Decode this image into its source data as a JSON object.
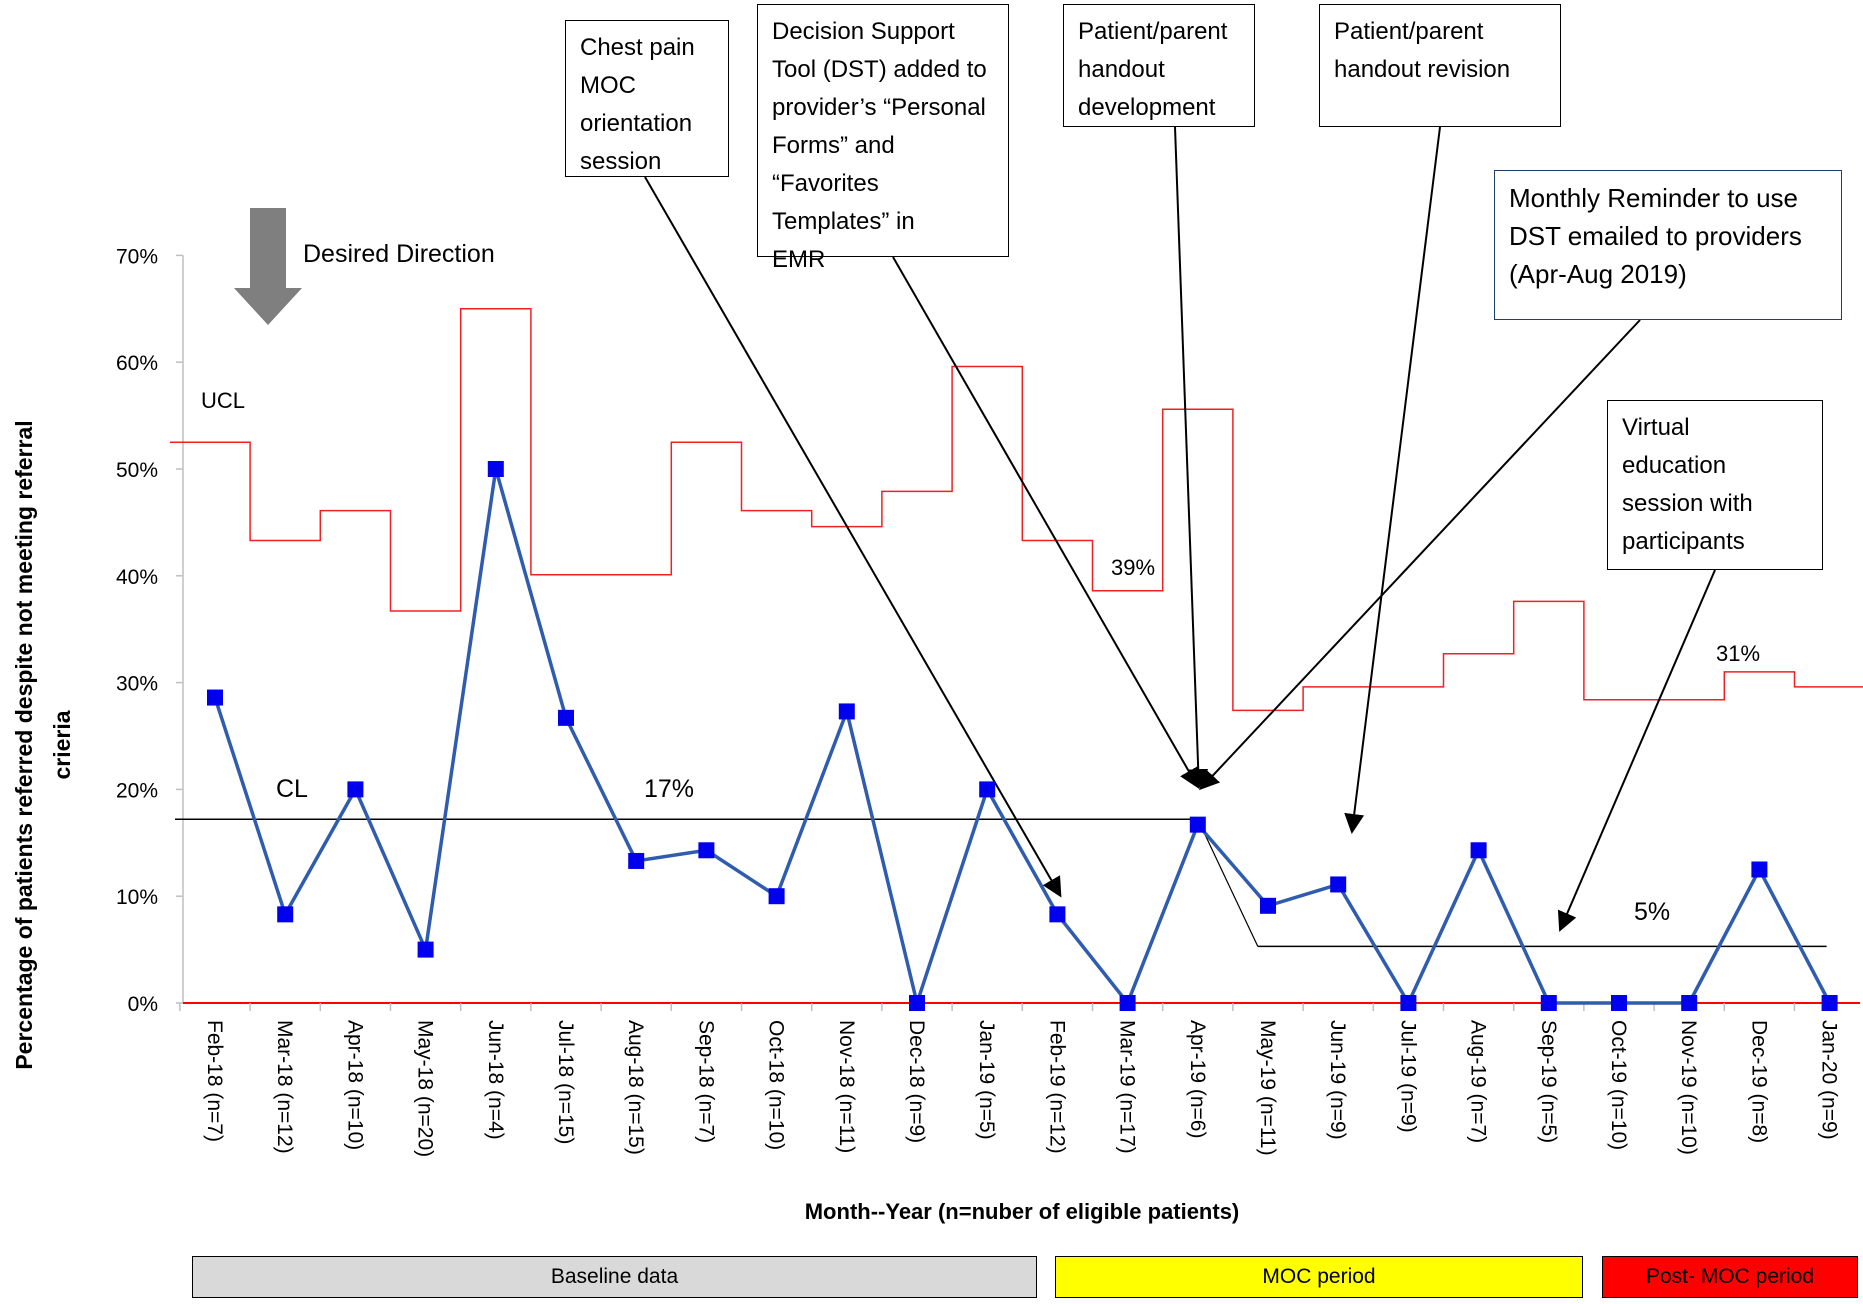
{
  "chart_data": {
    "type": "line",
    "ylabel": "Percentage of patients referred despite not meeting referral crieria",
    "xlabel": "Month--Year (n=nuber of eligible patients)",
    "ylim": [
      0,
      70
    ],
    "yticks": [
      "0%",
      "10%",
      "20%",
      "30%",
      "40%",
      "50%",
      "60%",
      "70%"
    ],
    "categories": [
      "Feb-18 (n=7)",
      "Mar-18 (n=12)",
      "Apr-18 (n=10)",
      "May-18 (n=20)",
      "Jun-18 (n=4)",
      "Jul-18 (n=15)",
      "Aug-18 (n=15)",
      "Sep-18 (n=7)",
      "Oct-18 (n=10)",
      "Nov-18 (n=11)",
      "Dec-18 (n=9)",
      "Jan-19 (n=5)",
      "Feb-19 (n=12)",
      "Mar-19 (n=17)",
      "Apr-19 (n=6)",
      "May-19 (n=11)",
      "Jun-19 (n=9)",
      "Jul-19 (n=9)",
      "Aug-19 (n=7)",
      "Sep-19 (n=5)",
      "Oct-19 (n=10)",
      "Nov-19 (n=10)",
      "Dec-19 (n=8)",
      "Jan-20 (n=9)"
    ],
    "series": [
      {
        "values": [
          28.6,
          8.3,
          20,
          5,
          50,
          26.7,
          13.3,
          14.3,
          10,
          27.3,
          0,
          20,
          8.3,
          0,
          16.7,
          9.1,
          11.1,
          0,
          14.3,
          0,
          0,
          0,
          12.5,
          0
        ],
        "color": "#2f5cae",
        "marker_color": "#0000ee"
      }
    ],
    "ucl": {
      "values": [
        52.5,
        43.3,
        46.1,
        36.7,
        65,
        40.1,
        40.1,
        52.5,
        46.1,
        44.6,
        47.9,
        59.6,
        43.3,
        38.6,
        55.6,
        27.4,
        29.6,
        29.6,
        32.7,
        37.6,
        28.4,
        28.4,
        31,
        29.6
      ],
      "color": "#ee2222",
      "label": "UCL"
    },
    "cl": {
      "baseline": 17.2,
      "post": 5.3,
      "baseline_label": "17%",
      "post_label": "5%",
      "label": "CL",
      "color": "#000000"
    },
    "value_labels": {
      "ucl_mar19": "39%",
      "ucl_dec19": "31%"
    },
    "grid": false,
    "desired_direction": "Desired Direction"
  },
  "annotations": [
    {
      "id": "chest-pain",
      "text": "Chest pain\nMOC\norientation\nsession"
    },
    {
      "id": "dst",
      "text": "Decision Support\nTool (DST) added to\nprovider’s “Personal\nForms” and\n“Favorites\nTemplates”  in\nEMR"
    },
    {
      "id": "handout-dev",
      "text": "Patient/parent\nhandout\ndevelopment"
    },
    {
      "id": "handout-rev",
      "text": "Patient/parent\nhandout revision"
    },
    {
      "id": "reminder",
      "text": "Monthly Reminder to use\nDST emailed to providers\n(Apr-Aug 2019)"
    },
    {
      "id": "virtual",
      "text": "Virtual\neducation\nsession with\nparticipants"
    }
  ],
  "phases": [
    {
      "label": "Baseline data",
      "color": "#d9d9d9"
    },
    {
      "label": "MOC period",
      "color": "#ffff00"
    },
    {
      "label": "Post- MOC period",
      "color": "#ff0000"
    }
  ]
}
